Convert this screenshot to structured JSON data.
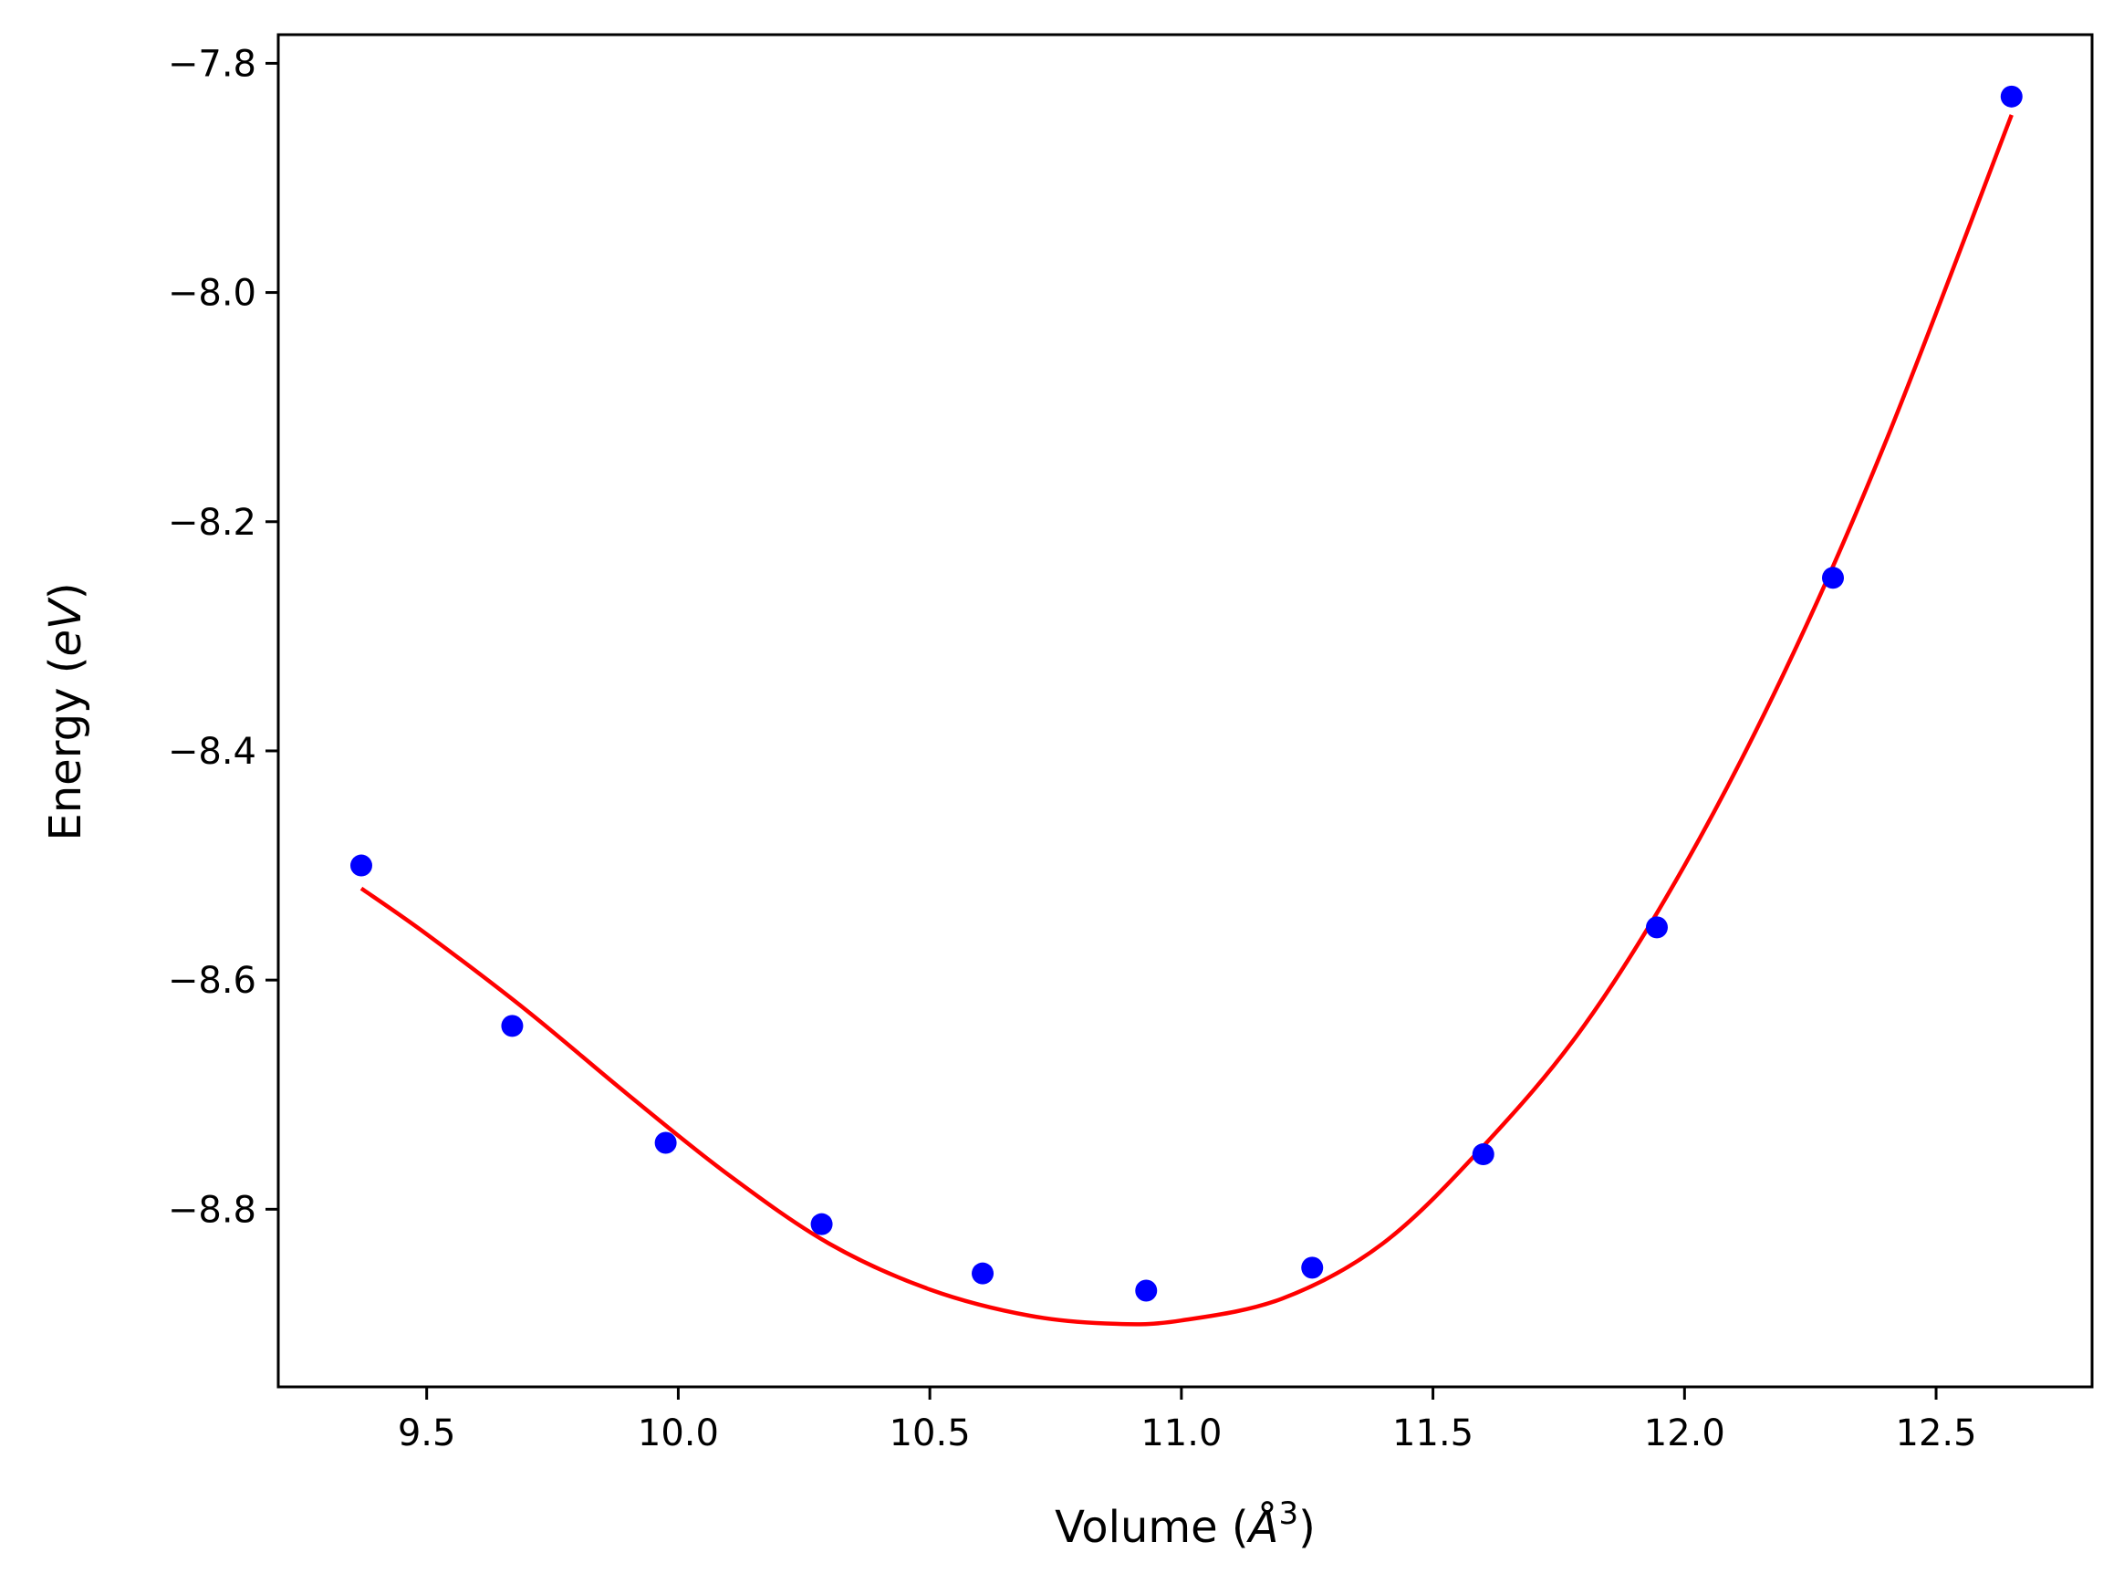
{
  "chart_data": {
    "type": "scatter",
    "title": "",
    "xlabel_main": "Volume (",
    "xlabel_unit": "Å",
    "xlabel_exp": "3",
    "xlabel_close": ")",
    "ylabel_main": "Energy (",
    "ylabel_unit": "eV",
    "ylabel_close": ")",
    "xlim": [
      9.205,
      12.81
    ],
    "ylim": [
      -8.955,
      -7.775
    ],
    "x_ticks": [
      9.5,
      10.0,
      10.5,
      11.0,
      11.5,
      12.0,
      12.5
    ],
    "x_tick_labels": [
      "9.5",
      "10.0",
      "10.5",
      "11.0",
      "11.5",
      "12.0",
      "12.5"
    ],
    "y_ticks": [
      -7.8,
      -8.0,
      -8.2,
      -8.4,
      -8.6,
      -8.8
    ],
    "y_tick_labels": [
      "−7.8",
      "−8.0",
      "−8.2",
      "−8.4",
      "−8.6",
      "−8.8"
    ],
    "grid": false,
    "series": [
      {
        "kind": "points",
        "color": "#0000ff",
        "x": [
          9.37,
          9.67,
          9.975,
          10.285,
          10.605,
          10.93,
          11.26,
          11.6,
          11.945,
          12.295,
          12.65
        ],
        "y": [
          -8.5,
          -8.64,
          -8.742,
          -8.813,
          -8.856,
          -8.871,
          -8.851,
          -8.752,
          -8.554,
          -8.249,
          -7.829
        ]
      },
      {
        "kind": "fit-curve",
        "color": "#ff0000",
        "x": [
          9.37,
          9.5,
          9.7,
          9.9,
          10.1,
          10.3,
          10.5,
          10.7,
          10.87,
          11.0,
          11.2,
          11.4,
          11.6,
          11.8,
          12.0,
          12.2,
          12.4,
          12.65
        ],
        "y": [
          -8.52,
          -8.56,
          -8.627,
          -8.7,
          -8.77,
          -8.83,
          -8.87,
          -8.893,
          -8.9,
          -8.897,
          -8.878,
          -8.83,
          -8.745,
          -8.64,
          -8.5,
          -8.33,
          -8.13,
          -7.845
        ]
      }
    ]
  }
}
